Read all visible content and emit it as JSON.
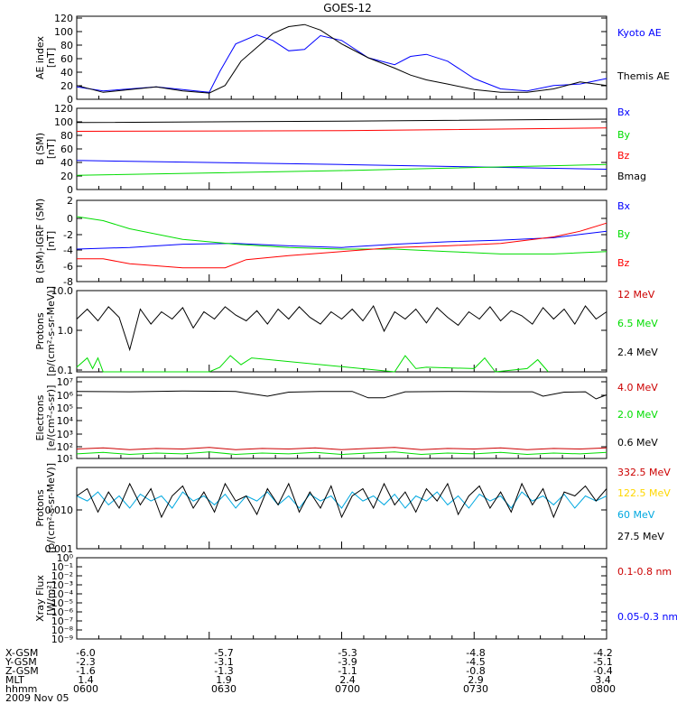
{
  "title": "GOES-12",
  "colors": {
    "black": "#000000",
    "blue": "#0000ff",
    "red": "#ff0000",
    "green": "#00dd00",
    "cyan": "#00a8e0",
    "yellow": "#ffd700",
    "darkred": "#cc0000"
  },
  "chart_data": [
    {
      "type": "line",
      "ylabel": [
        "AE index",
        "[nT]"
      ],
      "ylim": [
        0,
        120
      ],
      "yticks": [
        "0",
        "20",
        "40",
        "60",
        "80",
        "100",
        "120"
      ],
      "legend": [
        {
          "label": "Kyoto AE",
          "color": "#0000ff"
        },
        {
          "label": "Themis AE",
          "color": "#000000"
        }
      ],
      "series": [
        {
          "name": "Kyoto AE",
          "color": "#0000ff",
          "x": [
            0,
            5,
            10,
            15,
            20,
            25,
            27,
            30,
            34,
            37,
            40,
            43,
            46,
            50,
            55,
            60,
            63,
            66,
            70,
            75,
            80,
            85,
            90,
            95,
            100
          ],
          "y": [
            18,
            12,
            15,
            18,
            14,
            10,
            40,
            80,
            93,
            85,
            70,
            72,
            92,
            85,
            60,
            50,
            62,
            65,
            55,
            30,
            15,
            12,
            20,
            22,
            30
          ]
        },
        {
          "name": "Themis AE",
          "color": "#000000",
          "x": [
            0,
            5,
            10,
            15,
            20,
            25,
            28,
            31,
            34,
            37,
            40,
            43,
            46,
            50,
            55,
            60,
            63,
            66,
            70,
            75,
            80,
            85,
            90,
            95,
            100
          ],
          "y": [
            20,
            10,
            14,
            18,
            12,
            9,
            20,
            55,
            75,
            95,
            105,
            108,
            100,
            80,
            60,
            45,
            35,
            28,
            22,
            14,
            10,
            10,
            15,
            25,
            20
          ]
        }
      ]
    },
    {
      "type": "line",
      "ylabel": [
        "B (SM)",
        "[nT]"
      ],
      "ylim": [
        0,
        120
      ],
      "yticks": [
        "0",
        "20",
        "40",
        "60",
        "80",
        "100",
        "120"
      ],
      "legend": [
        {
          "label": "Bx",
          "color": "#0000ff"
        },
        {
          "label": "By",
          "color": "#00dd00"
        },
        {
          "label": "Bz",
          "color": "#ff0000"
        },
        {
          "label": "Bmag",
          "color": "#000000"
        }
      ],
      "series": [
        {
          "name": "Bmag",
          "color": "#000000",
          "x": [
            0,
            50,
            100
          ],
          "y": [
            99,
            101,
            104
          ]
        },
        {
          "name": "Bz",
          "color": "#ff0000",
          "x": [
            0,
            50,
            100
          ],
          "y": [
            86,
            87,
            91
          ]
        },
        {
          "name": "Bx",
          "color": "#0000ff",
          "x": [
            0,
            50,
            100
          ],
          "y": [
            43,
            37,
            30
          ]
        },
        {
          "name": "By",
          "color": "#00dd00",
          "x": [
            0,
            50,
            100
          ],
          "y": [
            21,
            28,
            37
          ]
        }
      ]
    },
    {
      "type": "line",
      "ylabel": [
        "B (SM)-IGRF (SM)",
        "[nT]"
      ],
      "ylim": [
        -8,
        2
      ],
      "yticks": [
        "-8",
        "-6",
        "-4",
        "-2",
        "0",
        "2"
      ],
      "legend": [
        {
          "label": "Bx",
          "color": "#0000ff"
        },
        {
          "label": "By",
          "color": "#00dd00"
        },
        {
          "label": "Bz",
          "color": "#ff0000"
        }
      ],
      "series": [
        {
          "name": "Bx",
          "color": "#0000ff",
          "x": [
            0,
            10,
            20,
            30,
            40,
            50,
            60,
            70,
            80,
            90,
            95,
            100
          ],
          "y": [
            -4.0,
            -3.8,
            -3.4,
            -3.3,
            -3.6,
            -3.8,
            -3.4,
            -3.1,
            -2.9,
            -2.6,
            -2.2,
            -1.8
          ]
        },
        {
          "name": "By",
          "color": "#00dd00",
          "x": [
            0,
            5,
            10,
            20,
            30,
            40,
            50,
            60,
            70,
            80,
            90,
            100
          ],
          "y": [
            0,
            -0.5,
            -1.5,
            -2.8,
            -3.4,
            -3.8,
            -4.0,
            -4.0,
            -4.3,
            -4.6,
            -4.6,
            -4.3
          ]
        },
        {
          "name": "Bz",
          "color": "#ff0000",
          "x": [
            0,
            5,
            10,
            20,
            28,
            32,
            40,
            50,
            60,
            70,
            80,
            90,
            95,
            100
          ],
          "y": [
            -5.2,
            -5.2,
            -5.8,
            -6.3,
            -6.3,
            -5.3,
            -4.8,
            -4.3,
            -3.8,
            -3.6,
            -3.3,
            -2.5,
            -1.8,
            -0.8
          ]
        }
      ]
    },
    {
      "type": "line",
      "log": true,
      "ylabel": [
        "Protons",
        "[p/(cm²-s-sr-MeV)]"
      ],
      "ylim": [
        0.1,
        10
      ],
      "yticks": [
        "0.1",
        "1.0",
        "10.0"
      ],
      "legend": [
        {
          "label": "12 MeV",
          "color": "#cc0000"
        },
        {
          "label": "6.5 MeV",
          "color": "#00dd00"
        },
        {
          "label": "2.4 MeV",
          "color": "#000000"
        }
      ],
      "series": [
        {
          "name": "2.4 MeV",
          "color": "#000000",
          "x": [
            0,
            2,
            4,
            6,
            8,
            10,
            12,
            14,
            16,
            18,
            20,
            22,
            24,
            26,
            28,
            30,
            32,
            34,
            36,
            38,
            40,
            42,
            44,
            46,
            48,
            50,
            52,
            54,
            56,
            58,
            60,
            62,
            64,
            66,
            68,
            70,
            72,
            74,
            76,
            78,
            80,
            82,
            84,
            86,
            88,
            90,
            92,
            94,
            96,
            98,
            100
          ],
          "y": [
            2.0,
            3.5,
            1.8,
            4.0,
            2.2,
            0.35,
            3.5,
            1.5,
            3.0,
            2.0,
            3.8,
            1.2,
            3.0,
            2.0,
            4.0,
            2.5,
            1.8,
            3.2,
            1.5,
            3.5,
            2.0,
            4.0,
            2.2,
            1.5,
            3.0,
            2.0,
            3.5,
            1.8,
            4.2,
            1.0,
            3.0,
            2.0,
            3.5,
            1.6,
            3.8,
            2.2,
            1.4,
            3.0,
            2.0,
            4.0,
            1.8,
            3.2,
            2.4,
            1.5,
            3.8,
            2.0,
            3.5,
            1.5,
            4.2,
            2.0,
            3.0
          ]
        },
        {
          "name": "6.5 MeV",
          "color": "#00dd00",
          "x": [
            0,
            2,
            3,
            4,
            5,
            25,
            27,
            29,
            31,
            33,
            60,
            62,
            64,
            66,
            75,
            77,
            79,
            85,
            87,
            89
          ],
          "y": [
            0.13,
            0.22,
            0.12,
            0.22,
            0.1,
            0.1,
            0.13,
            0.25,
            0.15,
            0.22,
            0.1,
            0.25,
            0.12,
            0.13,
            0.12,
            0.22,
            0.1,
            0.12,
            0.2,
            0.1
          ]
        }
      ]
    },
    {
      "type": "line",
      "log": true,
      "ylabel": [
        "Electrons",
        "[e/(cm²-s-sr)]"
      ],
      "ylim": [
        10,
        10000000
      ],
      "yticks": [
        "10¹",
        "10²",
        "10³",
        "10⁴",
        "10⁵",
        "10⁶",
        "10⁷"
      ],
      "legend": [
        {
          "label": "4.0 MeV",
          "color": "#cc0000"
        },
        {
          "label": "2.0 MeV",
          "color": "#00dd00"
        },
        {
          "label": "0.6 MeV",
          "color": "#000000"
        }
      ],
      "series": [
        {
          "name": "0.6 MeV",
          "color": "#000000",
          "x": [
            0,
            10,
            20,
            30,
            36,
            40,
            46,
            52,
            55,
            58,
            62,
            70,
            80,
            86,
            88,
            92,
            96,
            98,
            100
          ],
          "y": [
            900000,
            850000,
            950000,
            900000,
            400000,
            800000,
            900000,
            900000,
            300000,
            300000,
            850000,
            900000,
            850000,
            850000,
            400000,
            800000,
            850000,
            250000,
            500000
          ]
        },
        {
          "name": "4.0 MeV",
          "color": "#cc0000",
          "x": [
            0,
            5,
            10,
            15,
            20,
            25,
            30,
            35,
            40,
            45,
            50,
            55,
            60,
            65,
            70,
            75,
            80,
            85,
            90,
            95,
            100
          ],
          "y": [
            50,
            60,
            45,
            55,
            50,
            65,
            45,
            55,
            50,
            60,
            45,
            55,
            65,
            45,
            55,
            50,
            60,
            45,
            55,
            50,
            60
          ]
        },
        {
          "name": "2.0 MeV",
          "color": "#00dd00",
          "x": [
            0,
            5,
            10,
            15,
            20,
            25,
            30,
            35,
            40,
            45,
            50,
            55,
            60,
            65,
            70,
            75,
            80,
            85,
            90,
            95,
            100
          ],
          "y": [
            22,
            28,
            20,
            25,
            22,
            30,
            20,
            25,
            22,
            28,
            20,
            25,
            30,
            20,
            25,
            22,
            28,
            20,
            25,
            22,
            28
          ]
        }
      ]
    },
    {
      "type": "line",
      "log": true,
      "ylabel": [
        "Protons",
        "[p/(cm²-s-sr-MeV)]"
      ],
      "ylim": [
        0.001,
        0.1
      ],
      "yticks": [
        "0.001",
        "0.010"
      ],
      "legend": [
        {
          "label": "332.5 MeV",
          "color": "#cc0000"
        },
        {
          "label": "122.5 MeV",
          "color": "#ffd700"
        },
        {
          "label": "60 MeV",
          "color": "#00a8e0"
        },
        {
          "label": "27.5 MeV",
          "color": "#000000"
        }
      ],
      "series": [
        {
          "name": "60 MeV",
          "color": "#00a8e0",
          "x": [
            0,
            2,
            4,
            6,
            8,
            10,
            12,
            14,
            16,
            18,
            20,
            22,
            24,
            26,
            28,
            30,
            32,
            34,
            36,
            38,
            40,
            42,
            44,
            46,
            48,
            50,
            52,
            54,
            56,
            58,
            60,
            62,
            64,
            66,
            68,
            70,
            72,
            74,
            76,
            78,
            80,
            82,
            84,
            86,
            88,
            90,
            92,
            94,
            96,
            98,
            100
          ],
          "y": [
            0.02,
            0.015,
            0.025,
            0.012,
            0.02,
            0.01,
            0.022,
            0.015,
            0.02,
            0.01,
            0.025,
            0.015,
            0.02,
            0.012,
            0.022,
            0.01,
            0.02,
            0.015,
            0.025,
            0.012,
            0.02,
            0.01,
            0.022,
            0.015,
            0.02,
            0.01,
            0.025,
            0.015,
            0.02,
            0.012,
            0.022,
            0.01,
            0.02,
            0.015,
            0.025,
            0.012,
            0.02,
            0.01,
            0.022,
            0.015,
            0.02,
            0.01,
            0.025,
            0.015,
            0.02,
            0.012,
            0.022,
            0.01,
            0.02,
            0.015,
            0.02
          ]
        },
        {
          "name": "27.5 MeV",
          "color": "#000000",
          "x": [
            0,
            2,
            4,
            6,
            8,
            10,
            12,
            14,
            16,
            18,
            20,
            22,
            24,
            26,
            28,
            30,
            32,
            34,
            36,
            38,
            40,
            42,
            44,
            46,
            48,
            50,
            52,
            54,
            56,
            58,
            60,
            62,
            64,
            66,
            68,
            70,
            72,
            74,
            76,
            78,
            80,
            82,
            84,
            86,
            88,
            90,
            92,
            94,
            96,
            98,
            100
          ],
          "y": [
            0.02,
            0.03,
            0.008,
            0.025,
            0.01,
            0.04,
            0.012,
            0.03,
            0.006,
            0.02,
            0.035,
            0.01,
            0.025,
            0.008,
            0.04,
            0.015,
            0.02,
            0.007,
            0.03,
            0.012,
            0.04,
            0.008,
            0.025,
            0.01,
            0.035,
            0.006,
            0.02,
            0.03,
            0.01,
            0.04,
            0.012,
            0.025,
            0.008,
            0.03,
            0.015,
            0.04,
            0.007,
            0.02,
            0.035,
            0.01,
            0.025,
            0.008,
            0.04,
            0.012,
            0.03,
            0.006,
            0.025,
            0.02,
            0.035,
            0.015,
            0.03
          ]
        }
      ]
    },
    {
      "type": "line",
      "log": true,
      "ylabel": [
        "Xray Flux",
        "[W/m²]"
      ],
      "ylim": [
        1e-09,
        1
      ],
      "yticks": [
        "10⁻⁹",
        "10⁻⁸",
        "10⁻⁷",
        "10⁻⁶",
        "10⁻⁵",
        "10⁻⁴",
        "10⁻³",
        "10⁻²",
        "10⁻¹",
        "10⁰"
      ],
      "legend": [
        {
          "label": "0.1-0.8 nm",
          "color": "#cc0000"
        },
        {
          "label": "0.05-0.3 nm",
          "color": "#0000ff"
        }
      ],
      "series": []
    }
  ],
  "x_axis": {
    "rows": [
      {
        "label": "X-GSM",
        "values": [
          "-6.0",
          "-5.7",
          "-5.3",
          "-4.8",
          "-4.2"
        ]
      },
      {
        "label": "Y-GSM",
        "values": [
          "-2.3",
          "-3.1",
          "-3.9",
          "-4.5",
          "-5.1"
        ]
      },
      {
        "label": "Z-GSM",
        "values": [
          "-1.6",
          "-1.3",
          "-1.1",
          "-0.8",
          "-0.4"
        ]
      },
      {
        "label": "MLT",
        "values": [
          "1.4",
          "1.9",
          "2.4",
          "2.9",
          "3.4"
        ]
      },
      {
        "label": "hhmm",
        "values": [
          "0600",
          "0630",
          "0700",
          "0730",
          "0800"
        ]
      }
    ],
    "date": "2009 Nov 05"
  }
}
